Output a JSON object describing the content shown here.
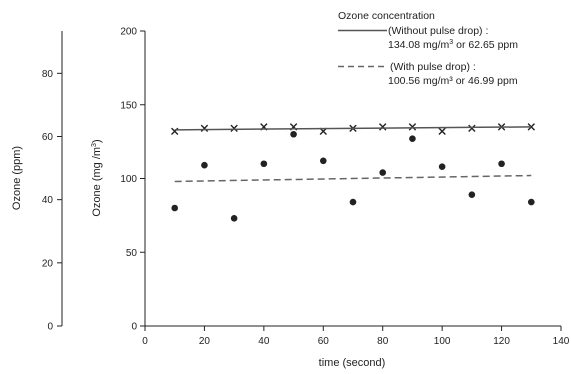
{
  "chart_data": {
    "type": "scatter",
    "title": "",
    "xlabel": "time (second)",
    "ylabel": "Ozone (mg/m3)",
    "ylabel_main": "Ozone (mg /m",
    "ylabel_sup": "3",
    "ylabel_close": ")",
    "ylabel_secondary": "Ozone (ppm)",
    "xlim": [
      0,
      140
    ],
    "ylim": [
      0,
      200
    ],
    "ylim_secondary": [
      0,
      93.4
    ],
    "x_ticks": [
      "0",
      "20",
      "40",
      "60",
      "80",
      "100",
      "120",
      "140"
    ],
    "y_ticks": [
      "0",
      "50",
      "100",
      "150",
      "200"
    ],
    "y2_ticks": [
      "0",
      "20",
      "40",
      "60",
      "80"
    ],
    "grid": false,
    "legend_position": "top-right",
    "legend": {
      "title": "Ozone concentration",
      "line1_label": "(Without pulse drop) :",
      "line1_value_a": "134.08 mg/m",
      "line1_sup": "3",
      "line1_value_b": "  or 62.65 ppm",
      "line2_label": "(With pulse drop) :",
      "line2_value": "100.56 mg/m³ or  46.99 ppm"
    },
    "series": [
      {
        "marker": "x",
        "x": [
          10,
          20,
          30,
          40,
          50,
          60,
          70,
          80,
          90,
          100,
          110,
          120,
          130
        ],
        "values": [
          132,
          134,
          134,
          135,
          135,
          132,
          134,
          135,
          135,
          132,
          134,
          135,
          135
        ]
      },
      {
        "marker": "dot",
        "x": [
          10,
          20,
          30,
          40,
          50,
          60,
          70,
          80,
          90,
          100,
          110,
          120,
          130
        ],
        "values": [
          80,
          109,
          73,
          110,
          130,
          112,
          84,
          104,
          127,
          108,
          89,
          110,
          84
        ]
      },
      {
        "line_style": "solid",
        "x": [
          10,
          130
        ],
        "values": [
          133,
          135
        ]
      },
      {
        "line_style": "dashed",
        "x": [
          10,
          130
        ],
        "values": [
          98,
          102
        ]
      }
    ]
  },
  "colors": {
    "ink": "#222222",
    "solid_line": "#555555",
    "dashed_line": "#666666"
  }
}
